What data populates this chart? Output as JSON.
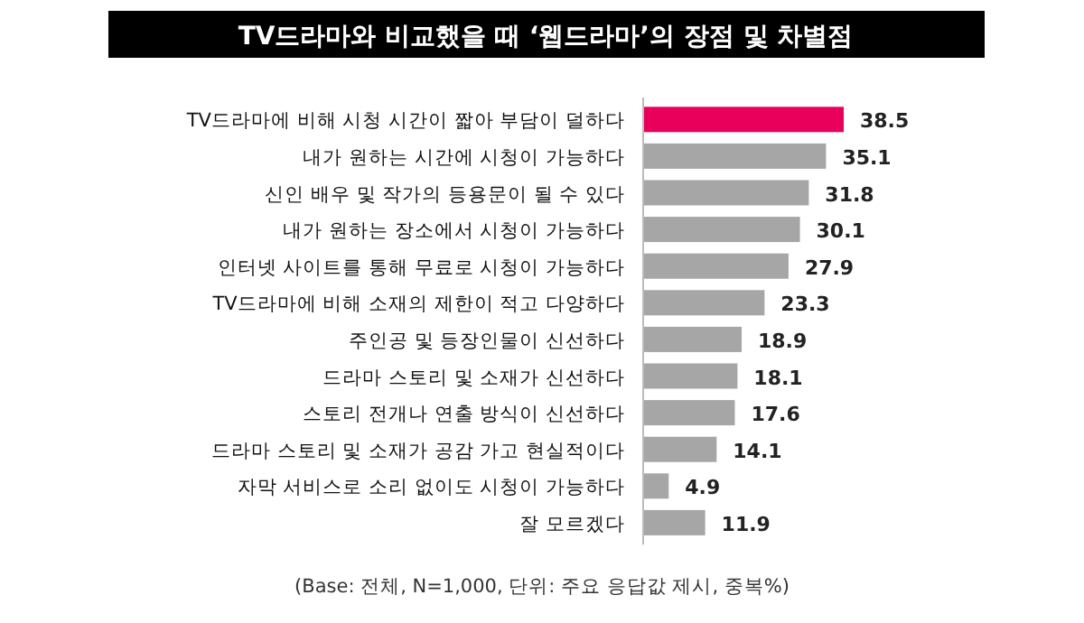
{
  "chart_data": {
    "type": "bar",
    "orientation": "horizontal",
    "title": "TV드라마와 비교했을 때 ‘웹드라마’의 장점 및 차별점",
    "categories": [
      "TV드라마에 비해 시청 시간이 짧아 부담이 덜하다",
      "내가 원하는 시간에 시청이 가능하다",
      "신인 배우 및 작가의 등용문이 될 수 있다",
      "내가 원하는 장소에서 시청이 가능하다",
      "인터넷 사이트를 통해 무료로 시청이 가능하다",
      "TV드라마에 비해 소재의 제한이 적고 다양하다",
      "주인공 및 등장인물이 신선하다",
      "드라마 스토리 및 소재가 신선하다",
      "스토리 전개나 연출 방식이 신선하다",
      "드라마 스토리 및 소재가 공감 가고 현실적이다",
      "자막 서비스로 소리 없이도 시청이 가능하다",
      "잘 모르겠다"
    ],
    "values": [
      38.5,
      35.1,
      31.8,
      30.1,
      27.9,
      23.3,
      18.9,
      18.1,
      17.6,
      14.1,
      4.9,
      11.9
    ],
    "colors": [
      "#e8005a",
      "#a6a6a6",
      "#a6a6a6",
      "#a6a6a6",
      "#a6a6a6",
      "#a6a6a6",
      "#a6a6a6",
      "#a6a6a6",
      "#a6a6a6",
      "#a6a6a6",
      "#a6a6a6",
      "#a6a6a6"
    ],
    "data_labels": true,
    "annotations": [
      "(Base: 전체, N=1,000, 단위: 주요 응답값 제시, 중복%)"
    ]
  }
}
